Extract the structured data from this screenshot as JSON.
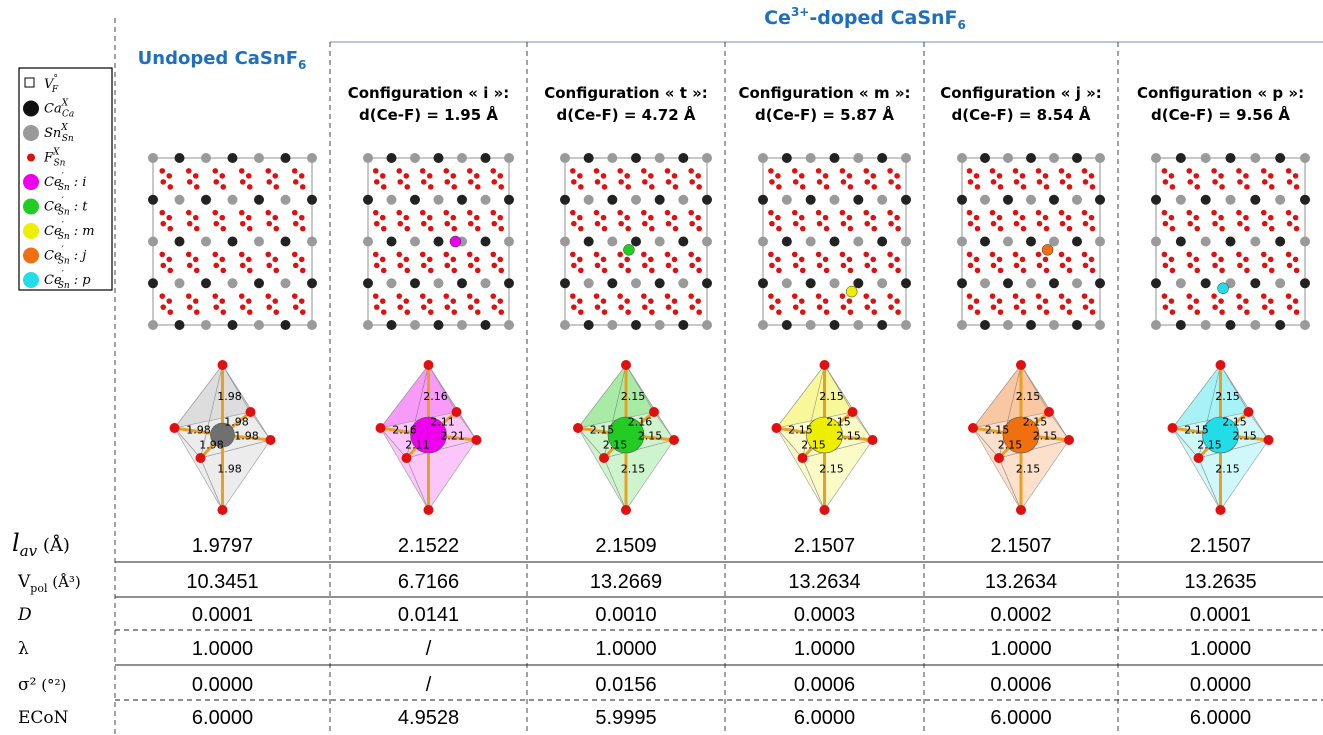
{
  "header": {
    "doped_title": {
      "main": "Ce",
      "sup": "3+",
      "rest": "-doped CaSnF",
      "sub": "6"
    },
    "undoped_title": {
      "main": "Undoped CaSnF",
      "sub": "6"
    }
  },
  "legend": [
    {
      "main": "V",
      "sup": "°",
      "sub": "F",
      "tag": ""
    },
    {
      "main": "Ca",
      "sup": "X",
      "sub": "Ca",
      "tag": ""
    },
    {
      "main": "Sn",
      "sup": "X",
      "sub": "Sn",
      "tag": ""
    },
    {
      "main": "F",
      "sup": "X",
      "sub": "Sn",
      "tag": ""
    },
    {
      "main": "Ce",
      "sup": "′",
      "sub": "Sn",
      "tag": " : i"
    },
    {
      "main": "Ce",
      "sup": "′",
      "sub": "Sn",
      "tag": " : t"
    },
    {
      "main": "Ce",
      "sup": "′",
      "sub": "Sn",
      "tag": " : m"
    },
    {
      "main": "Ce",
      "sup": "′",
      "sub": "Sn",
      "tag": " : j"
    },
    {
      "main": "Ce",
      "sup": "′",
      "sub": "Sn",
      "tag": " : p"
    }
  ],
  "columns": [
    {
      "config": null,
      "distance": null,
      "color": "#707070",
      "bonds": [
        "1.98",
        "1.98",
        "1.98",
        "1.98",
        "1.98",
        "1.98"
      ]
    },
    {
      "config": "Configuration « i »:",
      "distance": "d(Ce-F) = 1.95 Å",
      "color": "#ee00ee",
      "bonds": [
        "2.16",
        "2.11",
        "2.21",
        "2.16",
        "2.11"
      ]
    },
    {
      "config": "Configuration « t »:",
      "distance": "d(Ce-F) = 4.72 Å",
      "color": "#22cc22",
      "bonds": [
        "2.15",
        "2.16",
        "2.15",
        "2.15",
        "2.15",
        "2.15"
      ]
    },
    {
      "config": "Configuration « m »:",
      "distance": "d(Ce-F) = 5.87 Å",
      "color": "#eeee00",
      "bonds": [
        "2.15",
        "2.15",
        "2.15",
        "2.15",
        "2.15",
        "2.15"
      ]
    },
    {
      "config": "Configuration « j »:",
      "distance": "d(Ce-F) = 8.54 Å",
      "color": "#f07010",
      "bonds": [
        "2.15",
        "2.15",
        "2.15",
        "2.15",
        "2.15",
        "2.15"
      ]
    },
    {
      "config": "Configuration « p »:",
      "distance": "d(Ce-F) = 9.56 Å",
      "color": "#22dde8",
      "bonds": [
        "2.15",
        "2.15",
        "2.15",
        "2.15",
        "2.15",
        "2.15"
      ]
    }
  ],
  "table": {
    "row_labels": [
      {
        "main": "l",
        "sub": "av",
        "unit": " (Å)"
      },
      {
        "main": "V",
        "sub": "pol",
        "unit": " (Å³)"
      },
      {
        "main": "D",
        "sub": "",
        "unit": ""
      },
      {
        "main": "λ",
        "sub": "",
        "unit": ""
      },
      {
        "main": "σ²",
        "sub": "",
        "unit": " (°²)"
      },
      {
        "main": "ECoN",
        "sub": "",
        "unit": ""
      }
    ],
    "rows": [
      [
        "1.9797",
        "2.1522",
        "2.1509",
        "2.1507",
        "2.1507",
        "2.1507"
      ],
      [
        "10.3451",
        "6.7166",
        "13.2669",
        "13.2634",
        "13.2634",
        "13.2635"
      ],
      [
        "0.0001",
        "0.0141",
        "0.0010",
        "0.0003",
        "0.0002",
        "0.0001"
      ],
      [
        "1.0000",
        "/",
        "1.0000",
        "1.0000",
        "1.0000",
        "1.0000"
      ],
      [
        "0.0000",
        "/",
        "0.0156",
        "0.0006",
        "0.0006",
        "0.0000"
      ],
      [
        "6.0000",
        "4.9528",
        "5.9995",
        "6.0000",
        "6.0000",
        "6.0000"
      ]
    ]
  }
}
